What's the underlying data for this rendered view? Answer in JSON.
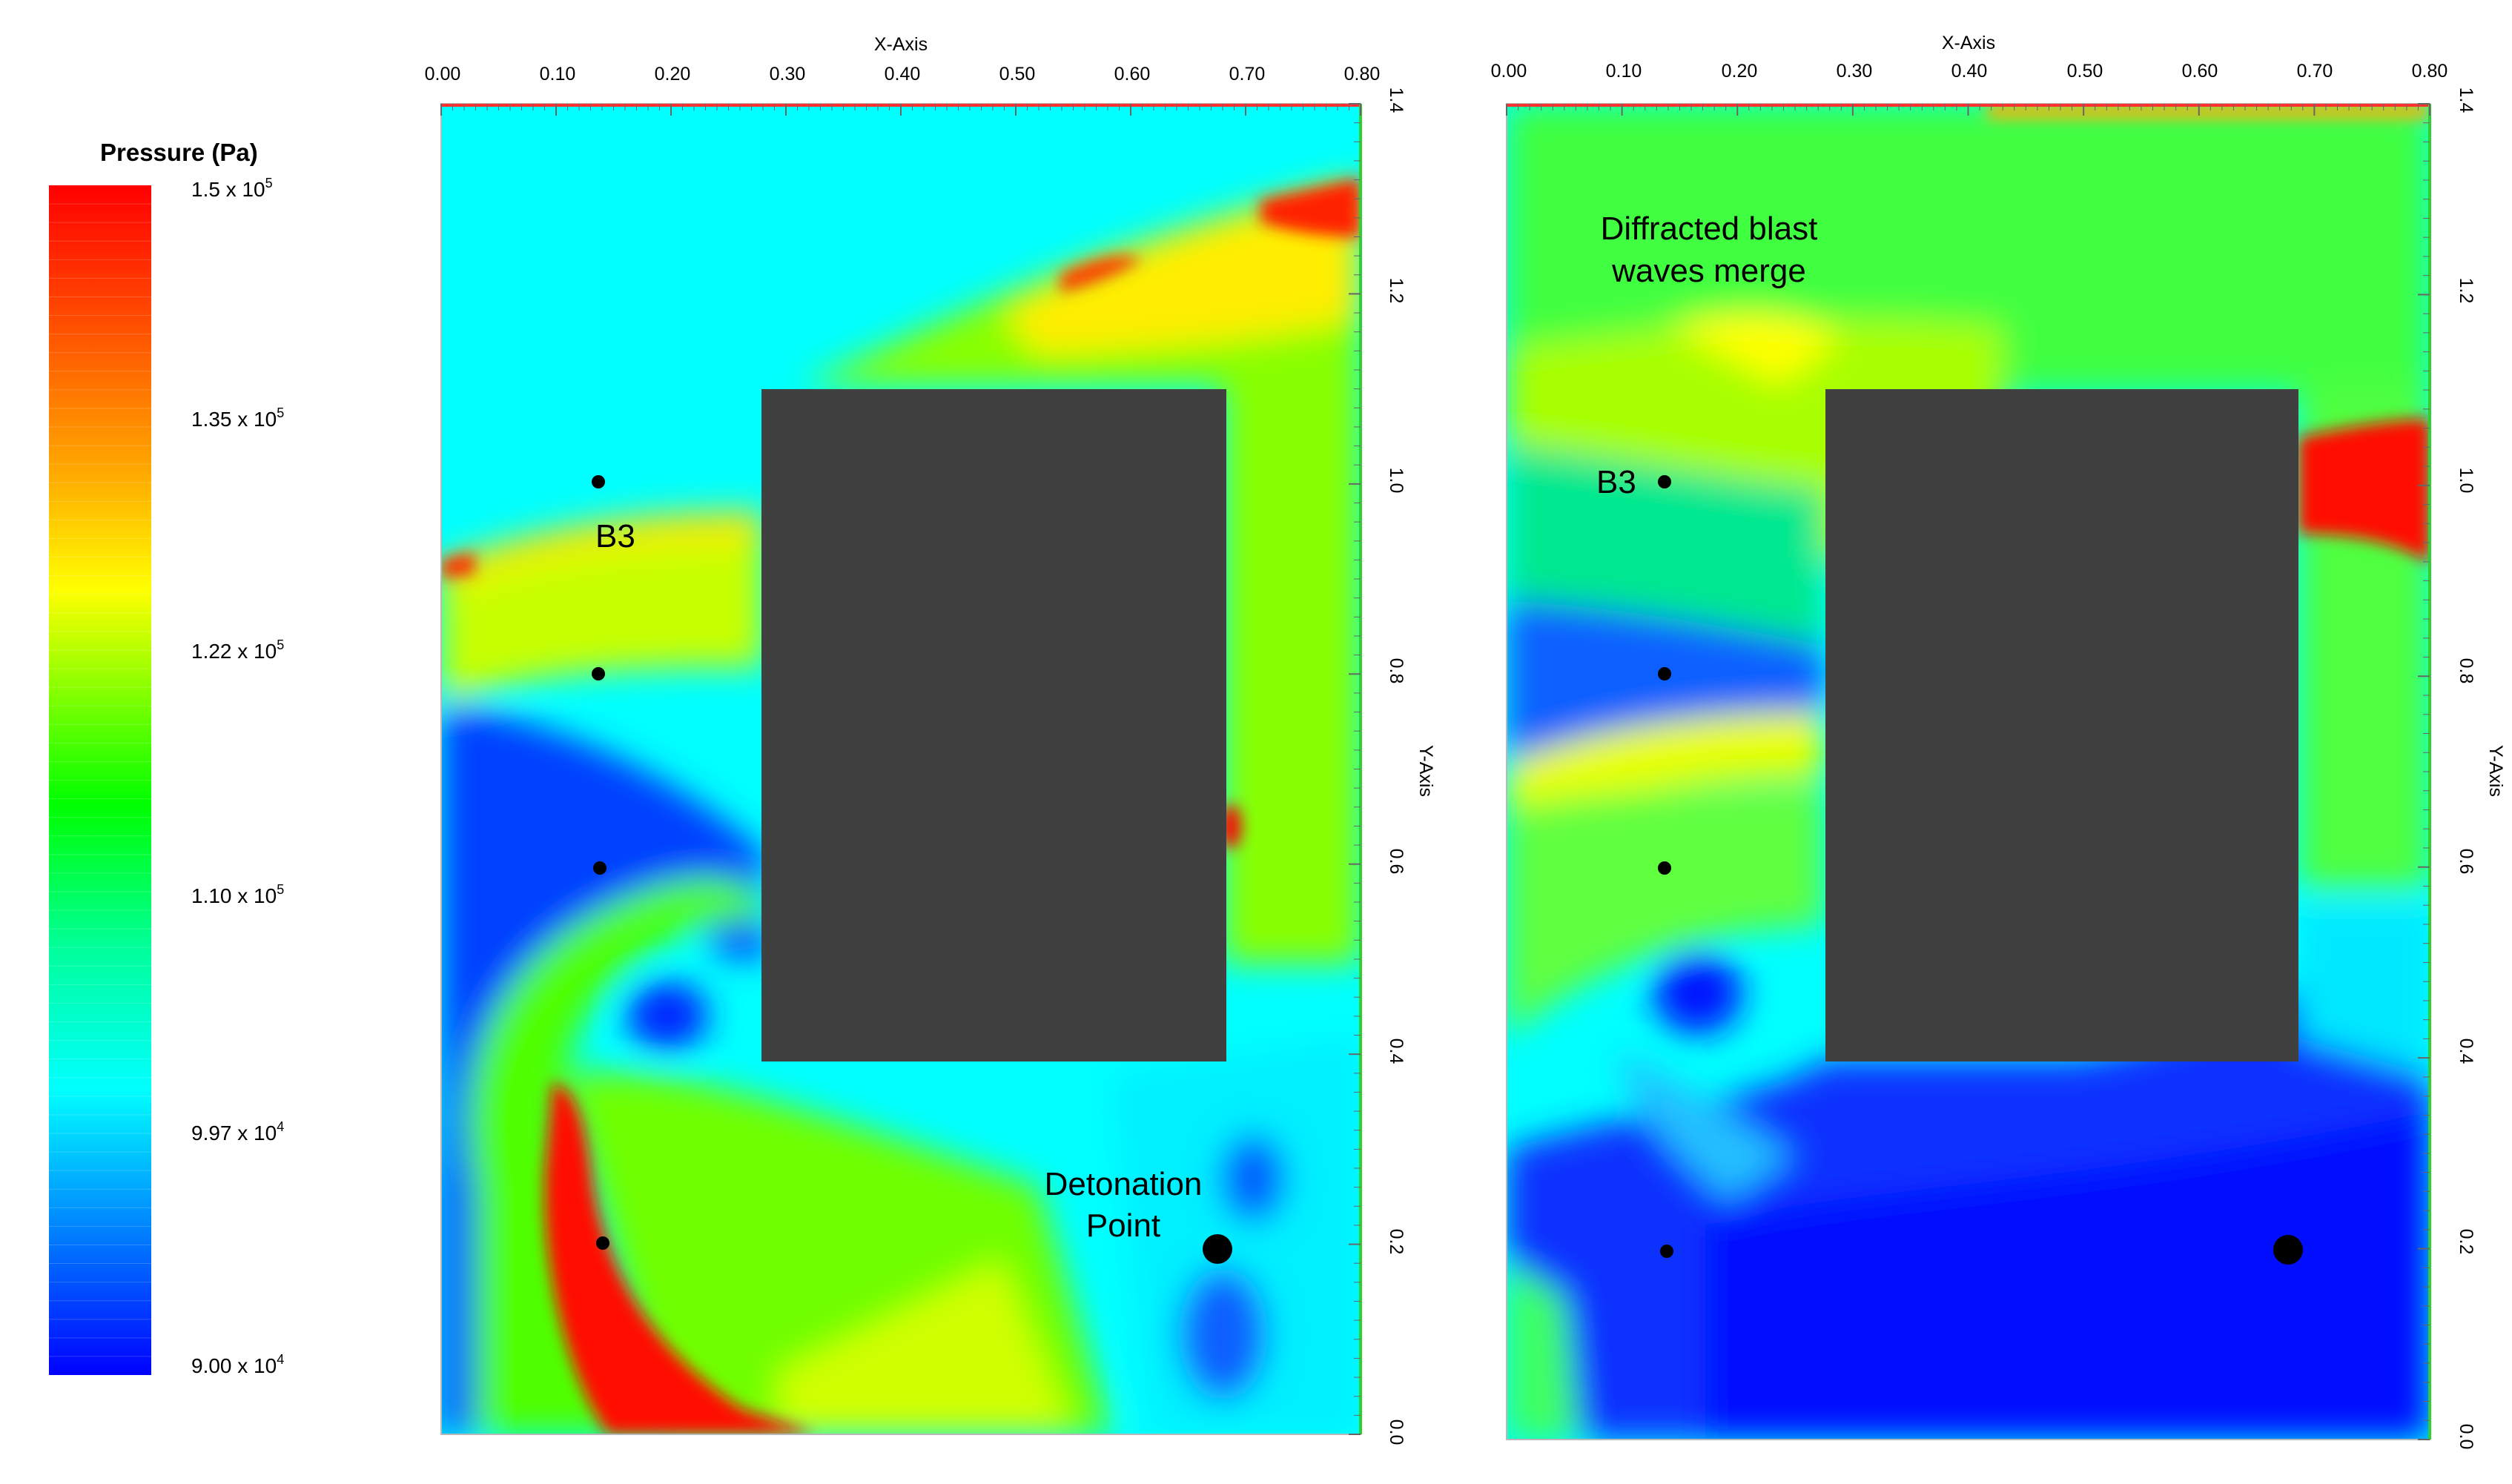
{
  "colorbar": {
    "title": "Pressure (Pa)",
    "labels": [
      {
        "text": "1.5 x 10",
        "exp": "5"
      },
      {
        "text": "1.35 x 10",
        "exp": "5"
      },
      {
        "text": "1.22 x 10",
        "exp": "5"
      },
      {
        "text": "1.10 x 10",
        "exp": "5"
      },
      {
        "text": "9.97 x 10",
        "exp": "4"
      },
      {
        "text": "9.00 x 10",
        "exp": "4"
      }
    ],
    "colors": [
      "#ff0000",
      "#ff8000",
      "#ffff00",
      "#00ff00",
      "#00ffff",
      "#0000ff"
    ]
  },
  "panels": [
    {
      "x_axis_title": "X-Axis",
      "y_axis_title": "Y-Axis",
      "x_ticks": [
        "0.00",
        "0.10",
        "0.20",
        "0.30",
        "0.40",
        "0.50",
        "0.60",
        "0.70",
        "0.80"
      ],
      "y_ticks": [
        "1.4",
        "1.2",
        "1.0",
        "0.8",
        "0.6",
        "0.4",
        "0.2",
        "0.0"
      ],
      "annotations": {
        "b3": "B3",
        "detonation_line1": "Detonation",
        "detonation_line2": "Point"
      }
    },
    {
      "x_axis_title": "X-Axis",
      "y_axis_title": "Y-Axis",
      "x_ticks": [
        "0.00",
        "0.10",
        "0.20",
        "0.30",
        "0.40",
        "0.50",
        "0.60",
        "0.70",
        "0.80"
      ],
      "y_ticks": [
        "1.4",
        "1.2",
        "1.0",
        "0.8",
        "0.6",
        "0.4",
        "0.2",
        "0.0"
      ],
      "annotations": {
        "b3": "B3",
        "merge_line1": "Diffracted blast",
        "merge_line2": "waves merge"
      }
    }
  ]
}
